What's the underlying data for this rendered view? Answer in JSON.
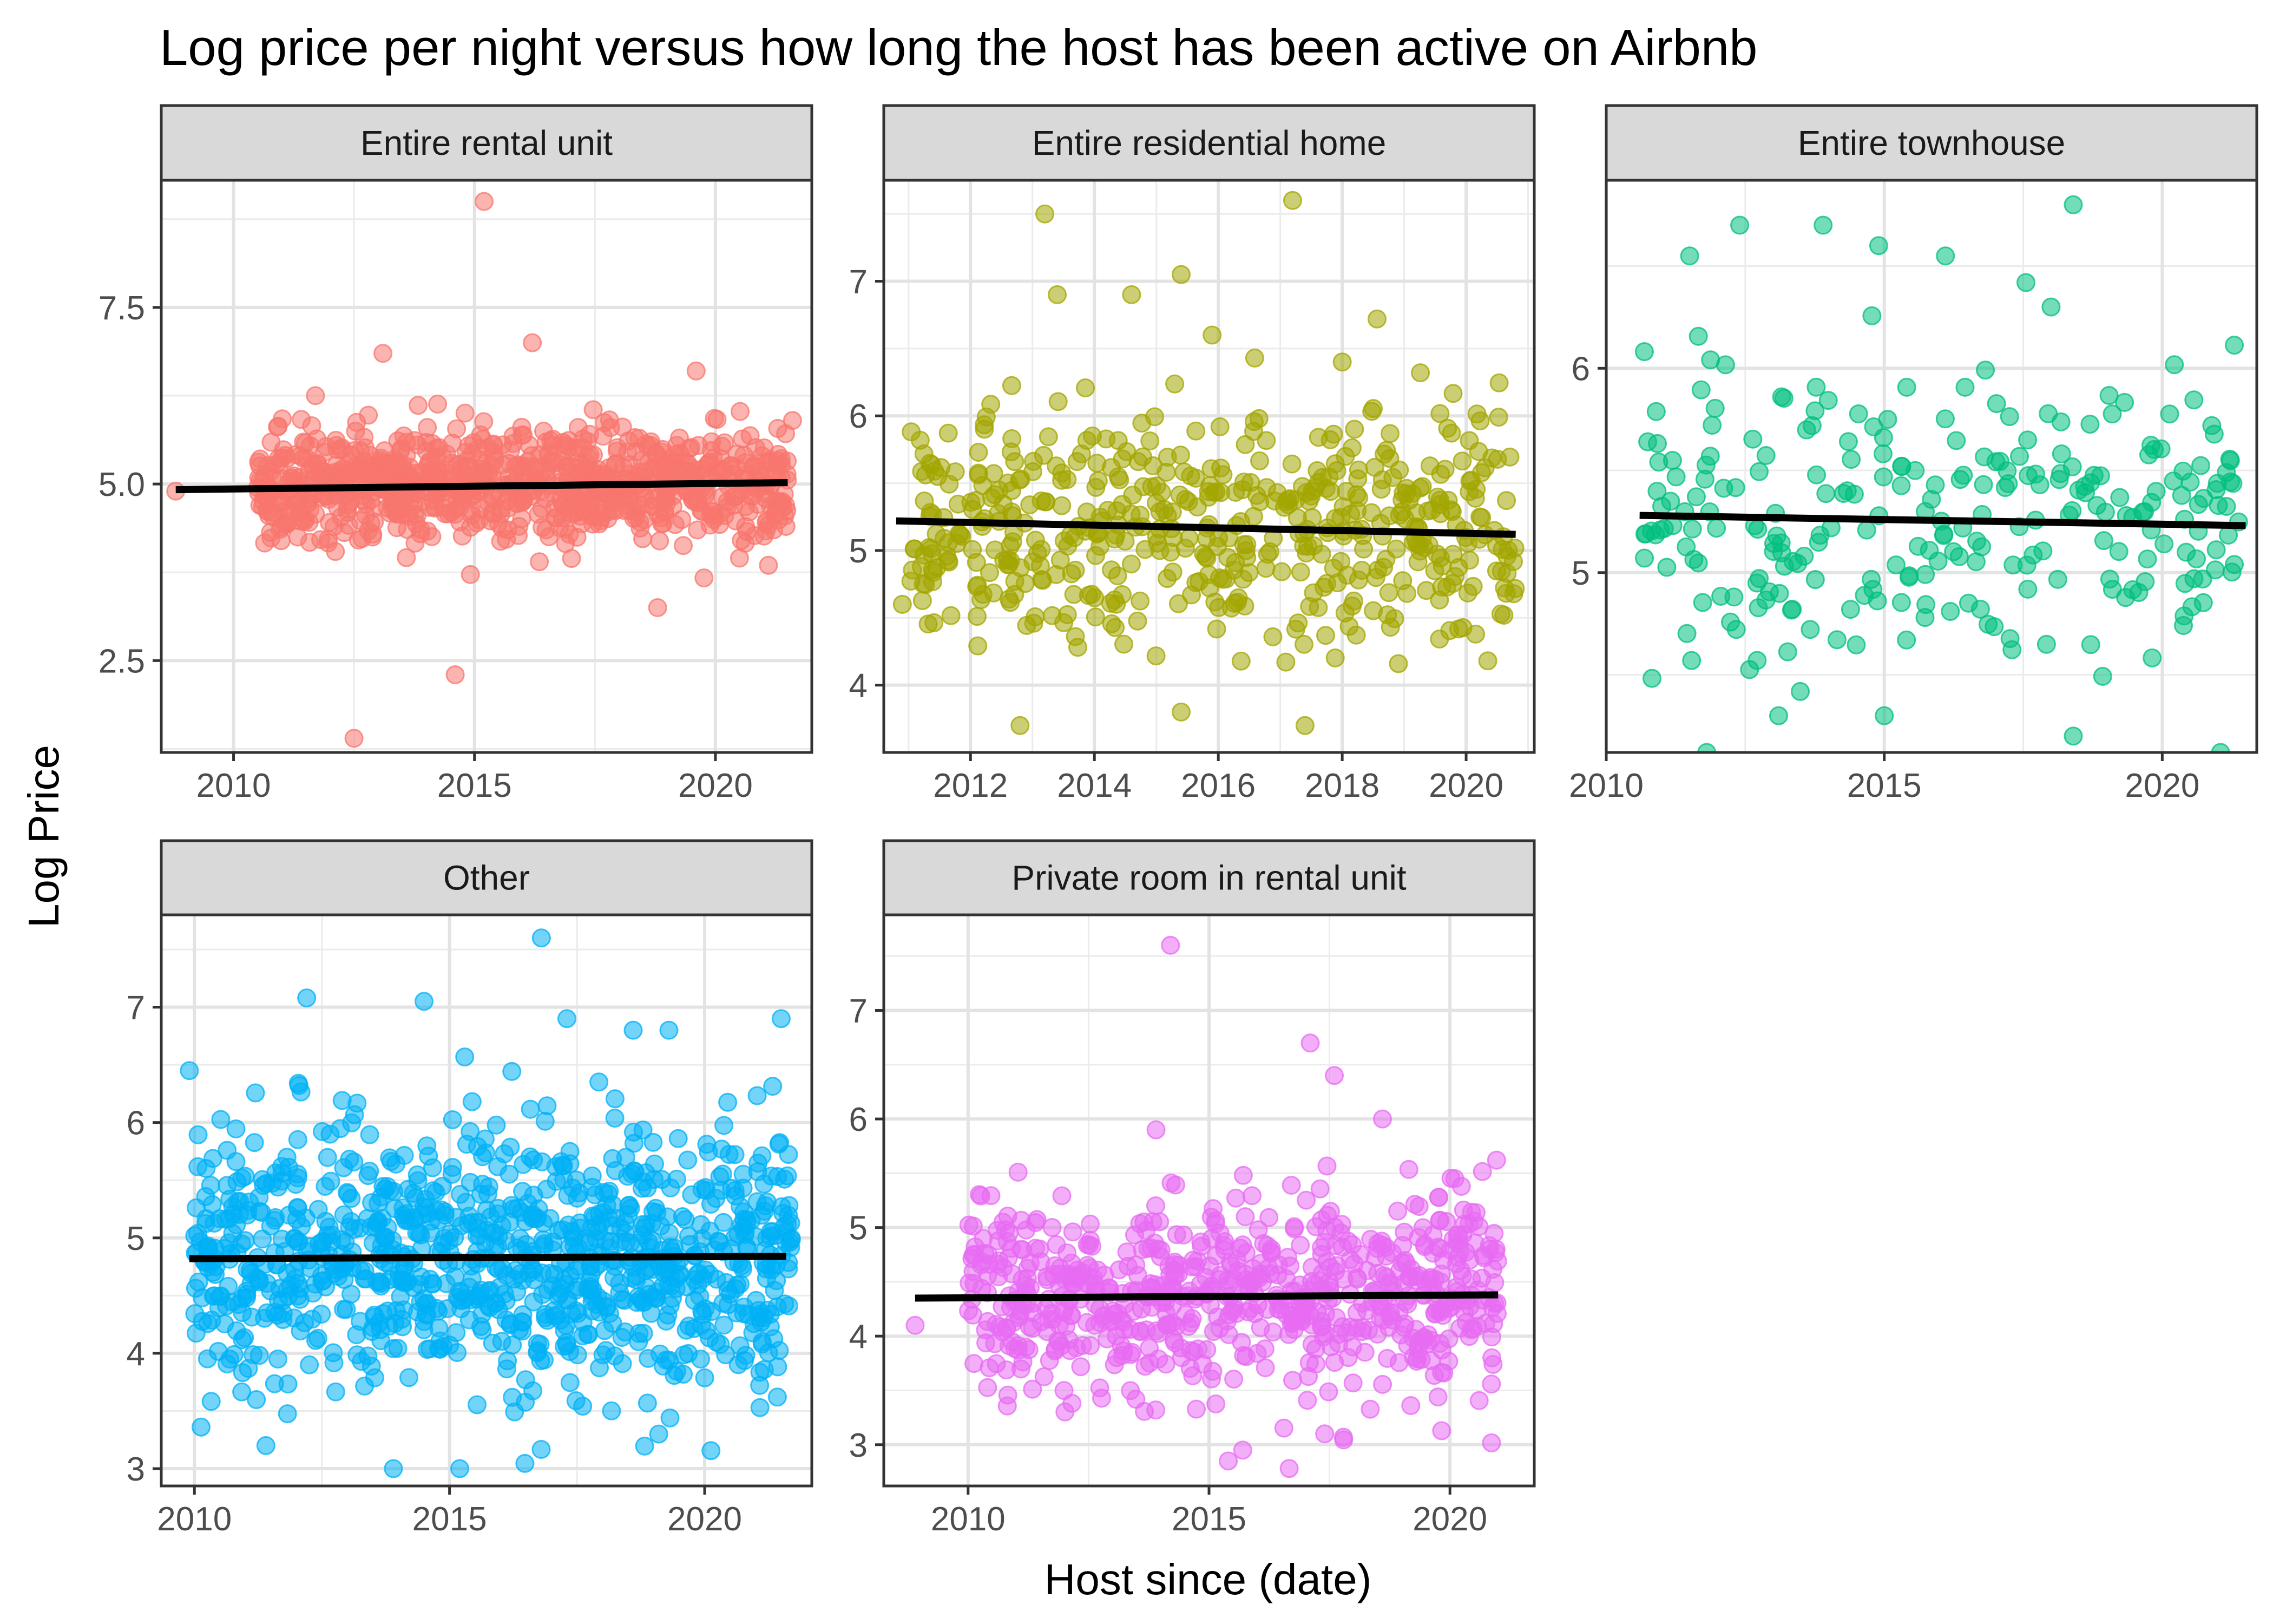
{
  "chart_data": {
    "type": "scatter",
    "title": "Log price per night versus how long the host has been active on Airbnb",
    "xlabel": "Host since (date)",
    "ylabel": "Log Price",
    "grid": true,
    "legend": "none",
    "panels": [
      {
        "name": "Entire rental unit",
        "color": "#F8766D",
        "xlim": [
          2008.5,
          2022.0
        ],
        "ylim": [
          1.2,
          9.3
        ],
        "xticks": [
          2010,
          2015,
          2020
        ],
        "yticks": [
          2.5,
          5.0,
          7.5
        ],
        "ytick_labels": [
          "2.5",
          "5.0",
          "7.5"
        ],
        "trend": [
          [
            2008.8,
            4.92
          ],
          [
            2021.5,
            5.02
          ]
        ],
        "cloud": {
          "x": [
            2010.5,
            2021.5
          ],
          "center": 5.0,
          "spread": 0.38,
          "count": 900
        },
        "outliers": [
          [
            2015.2,
            9.0
          ],
          [
            2012.5,
            1.4
          ],
          [
            2014.6,
            2.3
          ],
          [
            2018.8,
            3.25
          ],
          [
            2008.8,
            4.9
          ],
          [
            2016.2,
            7.0
          ],
          [
            2013.1,
            6.85
          ],
          [
            2019.6,
            6.6
          ],
          [
            2021.6,
            5.9
          ],
          [
            2021.1,
            3.85
          ]
        ]
      },
      {
        "name": "Entire residential home",
        "color": "#A3A500",
        "xlim": [
          2010.6,
          2021.1
        ],
        "ylim": [
          3.5,
          7.75
        ],
        "xticks": [
          2012,
          2014,
          2016,
          2018,
          2020
        ],
        "yticks": [
          4,
          5,
          6,
          7
        ],
        "ytick_labels": [
          "4",
          "5",
          "6",
          "7"
        ],
        "trend": [
          [
            2010.8,
            5.22
          ],
          [
            2020.8,
            5.12
          ]
        ],
        "cloud": {
          "x": [
            2011.0,
            2020.8
          ],
          "center": 5.2,
          "spread": 0.45,
          "count": 520
        },
        "outliers": [
          [
            2013.2,
            7.5
          ],
          [
            2017.2,
            7.6
          ],
          [
            2015.4,
            7.05
          ],
          [
            2013.4,
            6.9
          ],
          [
            2014.6,
            6.9
          ],
          [
            2015.9,
            6.6
          ],
          [
            2012.8,
            3.7
          ],
          [
            2015.4,
            3.8
          ],
          [
            2017.4,
            3.7
          ],
          [
            2010.9,
            4.6
          ],
          [
            2018.0,
            6.4
          ]
        ]
      },
      {
        "name": "Entire townhouse",
        "color": "#00BF7D",
        "xlim": [
          2010.0,
          2021.7
        ],
        "ylim": [
          4.12,
          6.92
        ],
        "xticks": [
          2010,
          2015,
          2020
        ],
        "yticks": [
          5,
          6
        ],
        "ytick_labels": [
          "5",
          "6"
        ],
        "trend": [
          [
            2010.6,
            5.28
          ],
          [
            2021.5,
            5.23
          ]
        ],
        "cloud": {
          "x": [
            2010.6,
            2021.5
          ],
          "center": 5.25,
          "spread": 0.38,
          "count": 260
        },
        "outliers": [
          [
            2018.4,
            6.8
          ],
          [
            2012.4,
            6.7
          ],
          [
            2013.9,
            6.7
          ],
          [
            2014.9,
            6.6
          ],
          [
            2016.1,
            6.55
          ],
          [
            2011.5,
            6.55
          ],
          [
            2018.4,
            4.2
          ],
          [
            2013.1,
            4.3
          ],
          [
            2015.0,
            4.3
          ],
          [
            2018.0,
            6.3
          ]
        ]
      },
      {
        "name": "Other",
        "color": "#00B0F6",
        "xlim": [
          2009.35,
          2022.1
        ],
        "ylim": [
          2.85,
          7.8
        ],
        "xticks": [
          2010,
          2015,
          2020
        ],
        "yticks": [
          3,
          4,
          5,
          6,
          7
        ],
        "ytick_labels": [
          "3",
          "4",
          "5",
          "6",
          "7"
        ],
        "trend": [
          [
            2009.9,
            4.82
          ],
          [
            2021.6,
            4.84
          ]
        ],
        "cloud": {
          "x": [
            2010.0,
            2021.7
          ],
          "center": 4.85,
          "spread": 0.58,
          "count": 1000
        },
        "outliers": [
          [
            2016.8,
            7.6
          ],
          [
            2012.2,
            7.08
          ],
          [
            2014.5,
            7.05
          ],
          [
            2009.9,
            6.45
          ],
          [
            2017.3,
            6.9
          ],
          [
            2021.5,
            6.9
          ],
          [
            2013.9,
            3.0
          ],
          [
            2015.2,
            3.0
          ],
          [
            2011.4,
            3.2
          ],
          [
            2019.1,
            3.3
          ],
          [
            2019.3,
            6.8
          ],
          [
            2018.6,
            6.8
          ]
        ]
      },
      {
        "name": "Private room in rental unit",
        "color": "#E76BF3",
        "xlim": [
          2008.25,
          2021.75
        ],
        "ylim": [
          2.62,
          7.88
        ],
        "xticks": [
          2010,
          2015,
          2020
        ],
        "yticks": [
          3,
          4,
          5,
          6,
          7
        ],
        "ytick_labels": [
          "3",
          "4",
          "5",
          "6",
          "7"
        ],
        "trend": [
          [
            2008.9,
            4.35
          ],
          [
            2021.0,
            4.38
          ]
        ],
        "cloud": {
          "x": [
            2010.0,
            2021.0
          ],
          "center": 4.38,
          "spread": 0.48,
          "count": 700
        },
        "outliers": [
          [
            2014.2,
            7.6
          ],
          [
            2017.1,
            6.7
          ],
          [
            2017.6,
            6.4
          ],
          [
            2018.6,
            6.0
          ],
          [
            2008.9,
            4.1
          ],
          [
            2015.4,
            2.85
          ],
          [
            2015.7,
            2.95
          ],
          [
            2017.4,
            3.1
          ],
          [
            2020.1,
            5.45
          ],
          [
            2013.9,
            5.9
          ]
        ]
      }
    ]
  }
}
